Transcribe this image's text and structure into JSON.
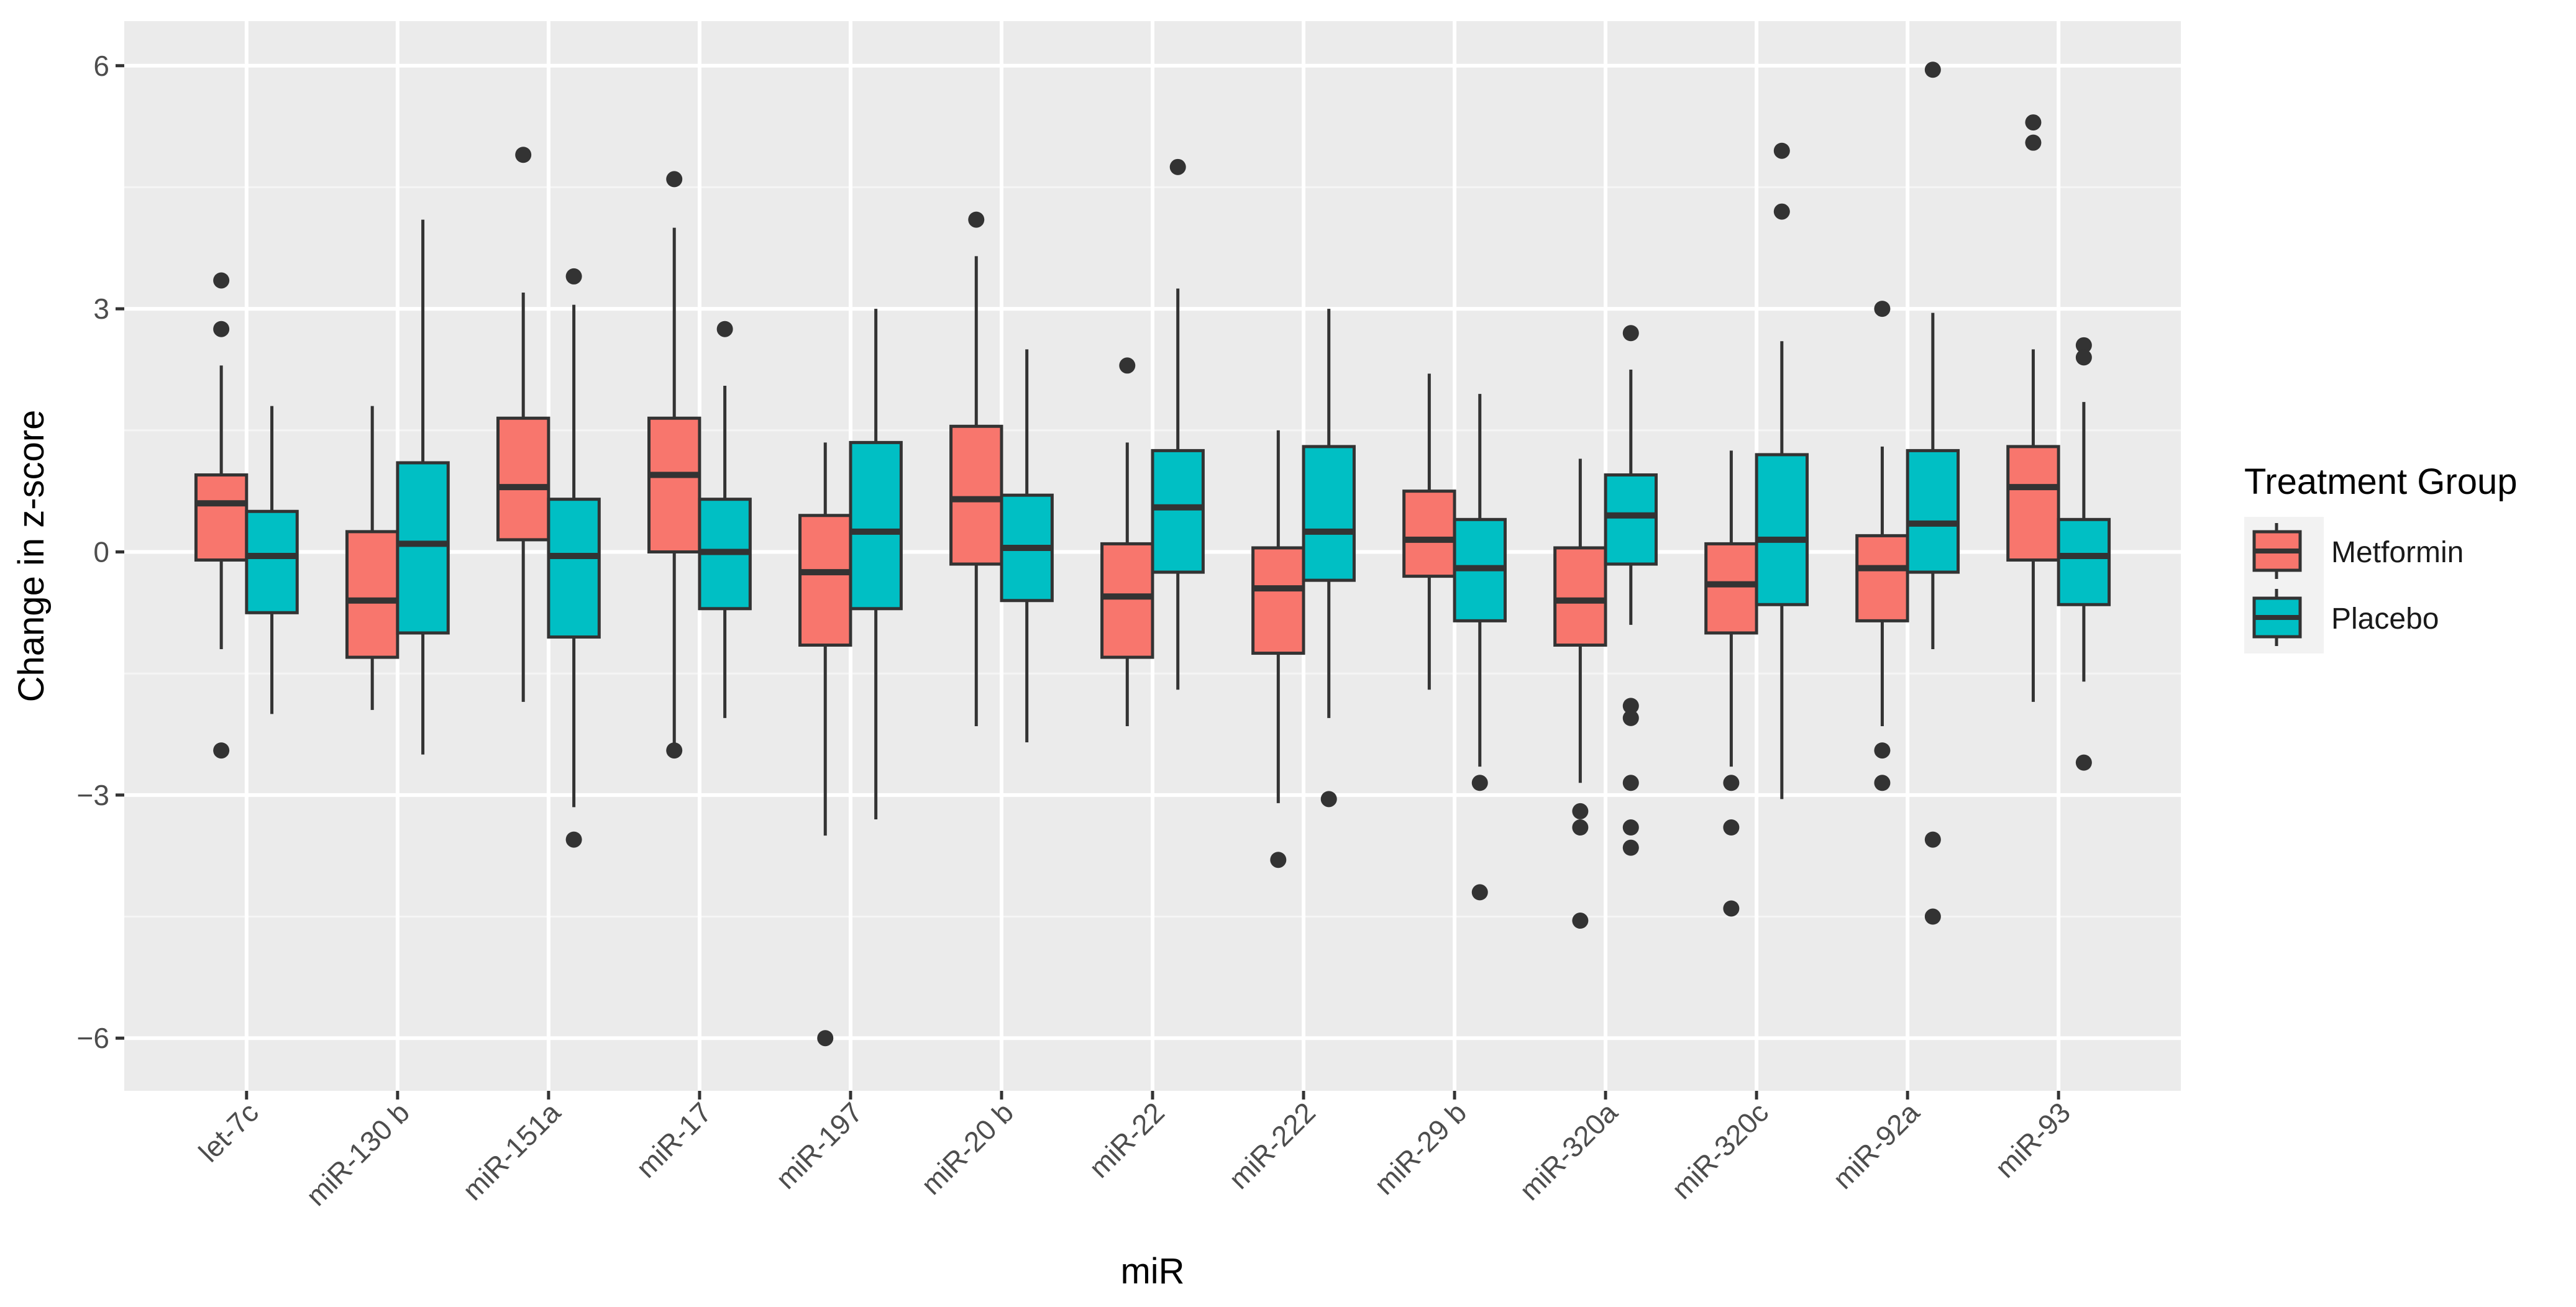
{
  "chart_data": {
    "type": "box",
    "xlabel": "miR",
    "ylabel": "Change in z-score",
    "ylim": [
      -6.65,
      6.55
    ],
    "yticks": [
      -6,
      -3,
      0,
      3,
      6
    ],
    "ytick_labels": [
      "−6",
      "−3",
      "0",
      "3",
      "6"
    ],
    "grid": true,
    "legend": {
      "title": "Treatment Group",
      "position": "right",
      "entries": [
        "Metformin",
        "Placebo"
      ]
    },
    "categories": [
      "let-7c",
      "miR-130 b",
      "miR-151a",
      "miR-17",
      "miR-197",
      "miR-20 b",
      "miR-22",
      "miR-222",
      "miR-29 b",
      "miR-320a",
      "miR-320c",
      "miR-92a",
      "miR-93"
    ],
    "series": [
      {
        "name": "Metformin",
        "color": "#F8766D",
        "boxes": [
          {
            "whisker_low": -1.2,
            "q1": -0.1,
            "median": 0.6,
            "q3": 0.95,
            "whisker_high": 2.3,
            "outliers": [
              3.35,
              2.75,
              -2.45
            ]
          },
          {
            "whisker_low": -1.95,
            "q1": -1.3,
            "median": -0.6,
            "q3": 0.25,
            "whisker_high": 1.8,
            "outliers": []
          },
          {
            "whisker_low": -1.85,
            "q1": 0.15,
            "median": 0.8,
            "q3": 1.65,
            "whisker_high": 3.2,
            "outliers": [
              4.9
            ]
          },
          {
            "whisker_low": -2.4,
            "q1": 0.0,
            "median": 0.95,
            "q3": 1.65,
            "whisker_high": 4.0,
            "outliers": [
              4.6,
              -2.45
            ]
          },
          {
            "whisker_low": -3.5,
            "q1": -1.15,
            "median": -0.25,
            "q3": 0.45,
            "whisker_high": 1.35,
            "outliers": [
              -6.0
            ]
          },
          {
            "whisker_low": -2.15,
            "q1": -0.15,
            "median": 0.65,
            "q3": 1.55,
            "whisker_high": 3.65,
            "outliers": [
              4.1
            ]
          },
          {
            "whisker_low": -2.15,
            "q1": -1.3,
            "median": -0.55,
            "q3": 0.1,
            "whisker_high": 1.35,
            "outliers": [
              2.3
            ]
          },
          {
            "whisker_low": -3.1,
            "q1": -1.25,
            "median": -0.45,
            "q3": 0.05,
            "whisker_high": 1.5,
            "outliers": [
              -3.8
            ]
          },
          {
            "whisker_low": -1.7,
            "q1": -0.3,
            "median": 0.15,
            "q3": 0.75,
            "whisker_high": 2.2,
            "outliers": []
          },
          {
            "whisker_low": -2.85,
            "q1": -1.15,
            "median": -0.6,
            "q3": 0.05,
            "whisker_high": 1.15,
            "outliers": [
              -3.2,
              -3.4,
              -4.55
            ]
          },
          {
            "whisker_low": -2.65,
            "q1": -1.0,
            "median": -0.4,
            "q3": 0.1,
            "whisker_high": 1.25,
            "outliers": [
              -2.85,
              -3.4,
              -4.4
            ]
          },
          {
            "whisker_low": -2.15,
            "q1": -0.85,
            "median": -0.2,
            "q3": 0.2,
            "whisker_high": 1.3,
            "outliers": [
              3.0,
              -2.45,
              -2.85
            ]
          },
          {
            "whisker_low": -1.85,
            "q1": -0.1,
            "median": 0.8,
            "q3": 1.3,
            "whisker_high": 2.5,
            "outliers": [
              5.3,
              5.05
            ]
          }
        ]
      },
      {
        "name": "Placebo",
        "color": "#00BFC4",
        "boxes": [
          {
            "whisker_low": -2.0,
            "q1": -0.75,
            "median": -0.05,
            "q3": 0.5,
            "whisker_high": 1.8,
            "outliers": []
          },
          {
            "whisker_low": -2.5,
            "q1": -1.0,
            "median": 0.1,
            "q3": 1.1,
            "whisker_high": 4.1,
            "outliers": []
          },
          {
            "whisker_low": -3.15,
            "q1": -1.05,
            "median": -0.05,
            "q3": 0.65,
            "whisker_high": 3.05,
            "outliers": [
              3.4,
              -3.55
            ]
          },
          {
            "whisker_low": -2.05,
            "q1": -0.7,
            "median": 0.0,
            "q3": 0.65,
            "whisker_high": 2.05,
            "outliers": [
              2.75
            ]
          },
          {
            "whisker_low": -3.3,
            "q1": -0.7,
            "median": 0.25,
            "q3": 1.35,
            "whisker_high": 3.0,
            "outliers": []
          },
          {
            "whisker_low": -2.35,
            "q1": -0.6,
            "median": 0.05,
            "q3": 0.7,
            "whisker_high": 2.5,
            "outliers": []
          },
          {
            "whisker_low": -1.7,
            "q1": -0.25,
            "median": 0.55,
            "q3": 1.25,
            "whisker_high": 3.25,
            "outliers": [
              4.75
            ]
          },
          {
            "whisker_low": -2.05,
            "q1": -0.35,
            "median": 0.25,
            "q3": 1.3,
            "whisker_high": 3.0,
            "outliers": [
              -3.05
            ]
          },
          {
            "whisker_low": -2.65,
            "q1": -0.85,
            "median": -0.2,
            "q3": 0.4,
            "whisker_high": 1.95,
            "outliers": [
              -2.85,
              -4.2
            ]
          },
          {
            "whisker_low": -0.9,
            "q1": -0.15,
            "median": 0.45,
            "q3": 0.95,
            "whisker_high": 2.25,
            "outliers": [
              2.7,
              -1.9,
              -2.05,
              -2.85,
              -3.4,
              -3.65
            ]
          },
          {
            "whisker_low": -3.05,
            "q1": -0.65,
            "median": 0.15,
            "q3": 1.2,
            "whisker_high": 2.6,
            "outliers": [
              4.95,
              4.2
            ]
          },
          {
            "whisker_low": -1.2,
            "q1": -0.25,
            "median": 0.35,
            "q3": 1.25,
            "whisker_high": 2.95,
            "outliers": [
              5.95,
              -3.55,
              -4.5
            ]
          },
          {
            "whisker_low": -1.6,
            "q1": -0.65,
            "median": -0.05,
            "q3": 0.4,
            "whisker_high": 1.85,
            "outliers": [
              2.55,
              2.4,
              -2.6
            ]
          }
        ]
      }
    ]
  }
}
